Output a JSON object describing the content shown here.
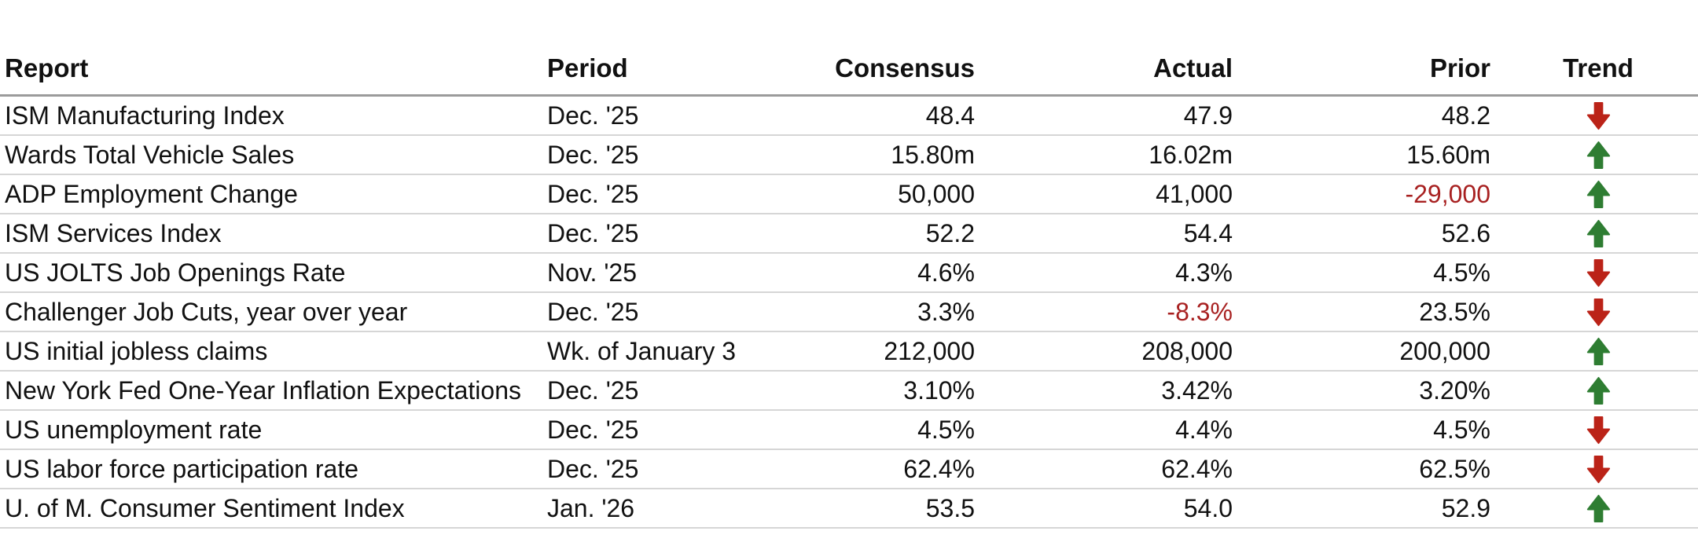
{
  "table": {
    "columns": [
      "Report",
      "Period",
      "Consensus",
      "Actual",
      "Prior",
      "Trend"
    ],
    "rows": [
      {
        "report": "ISM Manufacturing Index",
        "period": "Dec. '25",
        "consensus": "48.4",
        "actual": "47.9",
        "prior": "48.2",
        "trend": "down"
      },
      {
        "report": "Wards Total Vehicle Sales",
        "period": "Dec. '25",
        "consensus": "15.80m",
        "actual": "16.02m",
        "prior": "15.60m",
        "trend": "up"
      },
      {
        "report": "ADP Employment Change",
        "period": "Dec. '25",
        "consensus": "50,000",
        "actual": "41,000",
        "prior": "-29,000",
        "trend": "up"
      },
      {
        "report": "ISM Services Index",
        "period": "Dec. '25",
        "consensus": "52.2",
        "actual": "54.4",
        "prior": "52.6",
        "trend": "up"
      },
      {
        "report": "US JOLTS Job Openings Rate",
        "period": "Nov. '25",
        "consensus": "4.6%",
        "actual": "4.3%",
        "prior": "4.5%",
        "trend": "down"
      },
      {
        "report": "Challenger Job Cuts, year over year",
        "period": "Dec. '25",
        "consensus": "3.3%",
        "actual": "-8.3%",
        "prior": "23.5%",
        "trend": "down"
      },
      {
        "report": "US initial jobless claims",
        "period": "Wk. of January 3",
        "consensus": "212,000",
        "actual": "208,000",
        "prior": "200,000",
        "trend": "up"
      },
      {
        "report": "New York Fed One-Year Inflation Expectations",
        "period": "Dec. '25",
        "consensus": "3.10%",
        "actual": "3.42%",
        "prior": "3.20%",
        "trend": "up"
      },
      {
        "report": "US unemployment rate",
        "period": "Dec. '25",
        "consensus": "4.5%",
        "actual": "4.4%",
        "prior": "4.5%",
        "trend": "down"
      },
      {
        "report": "US labor force participation rate",
        "period": "Dec. '25",
        "consensus": "62.4%",
        "actual": "62.4%",
        "prior": "62.5%",
        "trend": "down"
      },
      {
        "report": "U. of M. Consumer Sentiment Index",
        "period": "Jan. '26",
        "consensus": "53.5",
        "actual": "54.0",
        "prior": "52.9",
        "trend": "up"
      }
    ]
  },
  "icons": {
    "up": "up-arrow-icon",
    "down": "down-arrow-icon"
  },
  "colors": {
    "trend_up": "#2e7d32",
    "trend_down": "#bb2318",
    "negative_value": "#a82121",
    "header_rule": "#9b9b9b",
    "row_rule": "#d6d6d6",
    "text": "#111111"
  }
}
